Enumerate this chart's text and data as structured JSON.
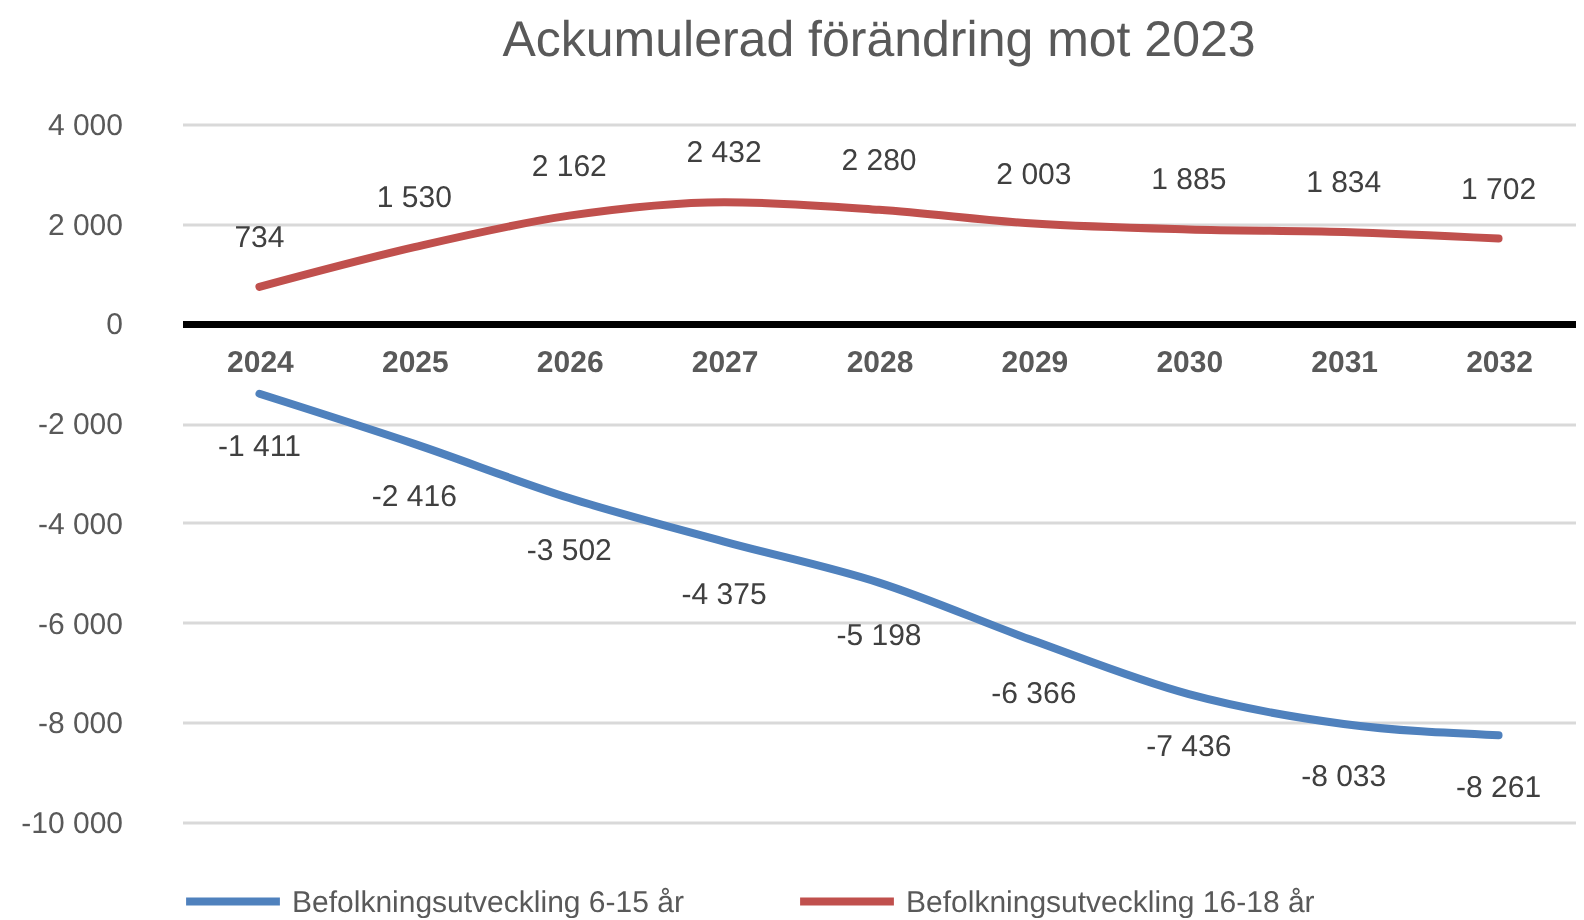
{
  "chart_data": {
    "type": "line",
    "title": "Ackumulerad förändring mot 2023",
    "categories": [
      "2024",
      "2025",
      "2026",
      "2027",
      "2028",
      "2029",
      "2030",
      "2031",
      "2032"
    ],
    "series": [
      {
        "name": "Befolkningsutveckling 6-15 år",
        "color": "#4f81bd",
        "values": [
          -1411,
          -2416,
          -3502,
          -4375,
          -5198,
          -6366,
          -7436,
          -8033,
          -8261
        ],
        "value_labels": [
          "-1 411",
          "-2 416",
          "-3 502",
          "-4 375",
          "-5 198",
          "-6 366",
          "-7 436",
          "-8 033",
          "-8 261"
        ]
      },
      {
        "name": "Befolkningsutveckling 16-18 år",
        "color": "#c0504d",
        "values": [
          734,
          1530,
          2162,
          2432,
          2280,
          2003,
          1885,
          1834,
          1702
        ],
        "value_labels": [
          "734",
          "1 530",
          "2 162",
          "2 432",
          "2 280",
          "2 003",
          "1 885",
          "1 834",
          "1 702"
        ]
      }
    ],
    "ylim": [
      -10000,
      4000
    ],
    "yticks": [
      {
        "value": -10000,
        "label": "-10 000"
      },
      {
        "value": -8000,
        "label": "-8 000"
      },
      {
        "value": -6000,
        "label": "-6 000"
      },
      {
        "value": -4000,
        "label": "-4 000"
      },
      {
        "value": -2000,
        "label": "-2 000"
      },
      0,
      {
        "value": 2000,
        "label": "2 000"
      },
      {
        "value": 4000,
        "label": "4 000"
      }
    ],
    "grid": "y",
    "legend": "bottom",
    "line_style": "solid"
  }
}
